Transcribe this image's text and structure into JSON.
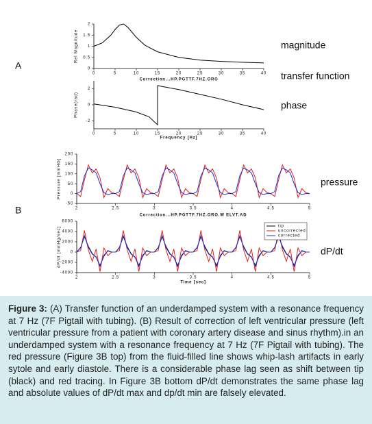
{
  "panels": [
    "A",
    "B"
  ],
  "side_labels": [
    "magnitude",
    "transfer function",
    "phase",
    "pressure",
    "dP/dt"
  ],
  "chart_data": [
    {
      "type": "line",
      "xlabel": "Correction...HP.PGTTF.7HZ.ORO",
      "ylabel": "Rel Magnitude",
      "x": [
        0,
        2,
        4,
        5,
        6,
        7,
        8,
        10,
        12,
        15,
        20,
        25,
        30,
        35,
        40
      ],
      "series": [
        {
          "color": "#000000",
          "values": [
            1,
            1.15,
            1.5,
            1.75,
            1.95,
            2,
            1.85,
            1.4,
            1.05,
            0.75,
            0.5,
            0.38,
            0.32,
            0.28,
            0.25
          ]
        }
      ],
      "xlim": [
        0,
        40
      ],
      "ylim": [
        0,
        2
      ],
      "xticks": [
        0,
        5,
        10,
        15,
        20,
        25,
        30,
        35,
        40
      ],
      "yticks": [
        0,
        0.5,
        1,
        1.5,
        2
      ]
    },
    {
      "type": "line",
      "xlabel": "Frequency [Hz]",
      "ylabel": "Phase(rad)",
      "x": [
        0,
        5,
        10,
        13,
        15,
        15,
        20,
        25,
        30,
        35,
        40
      ],
      "series": [
        {
          "color": "#000000",
          "values": [
            0.1,
            -0.3,
            -0.9,
            -1.5,
            -2.5,
            2.4,
            1.9,
            1.3,
            0.7,
            0,
            -0.6
          ]
        }
      ],
      "xlim": [
        0,
        40
      ],
      "ylim": [
        -3,
        3
      ],
      "xticks": [
        0,
        5,
        10,
        15,
        20,
        25,
        30,
        35,
        40
      ],
      "yticks": [
        -2,
        0,
        2
      ]
    },
    {
      "type": "line",
      "xlabel": "Correction...HP.PGTTF.7HZ.ORO.W ELVT.AD",
      "ylabel": "Pressure [mmHG]",
      "x": [
        2,
        2.05,
        2.1,
        2.15,
        2.2,
        2.25,
        2.3,
        2.35,
        2.4,
        2.45,
        2.5,
        2.55,
        2.6,
        2.65,
        2.7,
        2.75,
        2.8,
        2.85,
        2.9,
        2.95,
        3,
        3.05,
        3.1,
        3.15,
        3.2,
        3.25,
        3.3,
        3.35,
        3.4,
        3.45,
        3.5,
        3.55,
        3.6,
        3.65,
        3.7,
        3.75,
        3.8,
        3.85,
        3.9,
        3.95,
        4,
        4.05,
        4.1,
        4.15,
        4.2,
        4.25,
        4.3,
        4.35,
        4.4,
        4.45,
        4.5,
        4.55,
        4.6,
        4.65,
        4.7,
        4.75,
        4.8,
        4.85,
        4.9,
        4.95,
        5
      ],
      "series": [
        {
          "color": "#e02020",
          "values": [
            0,
            -15,
            70,
            145,
            105,
            125,
            80,
            -20,
            25,
            5,
            0,
            -15,
            70,
            145,
            105,
            125,
            80,
            -20,
            25,
            5,
            0,
            -15,
            70,
            145,
            105,
            125,
            80,
            -20,
            25,
            5,
            0,
            -15,
            70,
            145,
            105,
            125,
            80,
            -20,
            25,
            5,
            0,
            -15,
            70,
            145,
            105,
            125,
            80,
            -20,
            25,
            5,
            0,
            -15,
            70,
            145,
            105,
            125,
            80,
            -20,
            25,
            5,
            0
          ]
        },
        {
          "color": "#1f2fd0",
          "values": [
            0,
            10,
            90,
            130,
            120,
            105,
            50,
            5,
            -5,
            0,
            0,
            10,
            90,
            130,
            120,
            105,
            50,
            5,
            -5,
            0,
            0,
            10,
            90,
            130,
            120,
            105,
            50,
            5,
            -5,
            0,
            0,
            10,
            90,
            130,
            120,
            105,
            50,
            5,
            -5,
            0,
            0,
            10,
            90,
            130,
            120,
            105,
            50,
            5,
            -5,
            0,
            0,
            10,
            90,
            130,
            120,
            105,
            50,
            5,
            -5,
            0,
            0
          ]
        }
      ],
      "xlim": [
        2,
        5
      ],
      "ylim": [
        -50,
        200
      ],
      "xticks": [
        2,
        2.5,
        3,
        3.5,
        4,
        4.5,
        5
      ],
      "yticks": [
        -50,
        0,
        50,
        100,
        150,
        200
      ]
    },
    {
      "type": "line",
      "xlabel": "Time [sec]",
      "ylabel": "dP/dt [mmHg/sec]",
      "legend": "upper right",
      "x": [
        2,
        2.05,
        2.1,
        2.15,
        2.2,
        2.25,
        2.3,
        2.35,
        2.4,
        2.45,
        2.5,
        2.55,
        2.6,
        2.65,
        2.7,
        2.75,
        2.8,
        2.85,
        2.9,
        2.95,
        3,
        3.05,
        3.1,
        3.15,
        3.2,
        3.25,
        3.3,
        3.35,
        3.4,
        3.45,
        3.5,
        3.55,
        3.6,
        3.65,
        3.7,
        3.75,
        3.8,
        3.85,
        3.9,
        3.95,
        4,
        4.05,
        4.1,
        4.15,
        4.2,
        4.25,
        4.3,
        4.35,
        4.4,
        4.45,
        4.5,
        4.55,
        4.6,
        4.65,
        4.7,
        4.75,
        4.8,
        4.85,
        4.9,
        4.95,
        5
      ],
      "series": [
        {
          "name": "tip",
          "color": "#000000",
          "values": [
            0,
            900,
            3000,
            1100,
            -300,
            -1000,
            -2600,
            -800,
            300,
            0,
            0,
            900,
            3000,
            1100,
            -300,
            -1000,
            -2600,
            -800,
            300,
            0,
            0,
            900,
            3000,
            1100,
            -300,
            -1000,
            -2600,
            -800,
            300,
            0,
            0,
            900,
            3000,
            1100,
            -300,
            -1000,
            -2600,
            -800,
            300,
            0,
            0,
            900,
            3000,
            1100,
            -300,
            -1000,
            -2600,
            -800,
            300,
            0,
            0,
            900,
            3000,
            1100,
            -300,
            -1000,
            -2600,
            -800,
            300,
            0,
            0
          ]
        },
        {
          "name": "uncorrected",
          "color": "#e02020",
          "values": [
            0,
            300,
            4200,
            400,
            -1800,
            600,
            -3800,
            800,
            -700,
            0,
            0,
            300,
            4200,
            400,
            -1800,
            600,
            -3800,
            800,
            -700,
            0,
            0,
            300,
            4200,
            400,
            -1800,
            600,
            -3800,
            800,
            -700,
            0,
            0,
            300,
            4200,
            400,
            -1800,
            600,
            -3800,
            800,
            -700,
            0,
            0,
            300,
            4200,
            400,
            -1800,
            600,
            -3800,
            800,
            -700,
            0,
            0,
            300,
            4200,
            400,
            -1800,
            600,
            -3800,
            800,
            -700,
            0,
            0
          ]
        },
        {
          "name": "corrected",
          "color": "#1f2fd0",
          "values": [
            0,
            800,
            3200,
            900,
            -400,
            -900,
            -2800,
            -600,
            200,
            0,
            0,
            800,
            3200,
            900,
            -400,
            -900,
            -2800,
            -600,
            200,
            0,
            0,
            800,
            3200,
            900,
            -400,
            -900,
            -2800,
            -600,
            200,
            0,
            0,
            800,
            3200,
            900,
            -400,
            -900,
            -2800,
            -600,
            200,
            0,
            0,
            800,
            3200,
            900,
            -400,
            -900,
            -2800,
            -600,
            200,
            0,
            0,
            800,
            3200,
            900,
            -400,
            -900,
            -2800,
            -600,
            200,
            0,
            0
          ]
        }
      ],
      "xlim": [
        2,
        5
      ],
      "ylim": [
        -4000,
        6000
      ],
      "xticks": [
        2,
        2.5,
        3,
        3.5,
        4,
        4.5,
        5
      ],
      "yticks": [
        -4000,
        -2000,
        0,
        2000,
        4000,
        6000
      ]
    }
  ],
  "caption": {
    "label": "Figure 3:",
    "text": "(A) Transfer function of an underdamped system with a resonance frequency at 7 Hz (7F Pigtail with tubing). (B) Result of correction of left ventricular pressure (left ventricular pressure from a patient with coronary artery disease and sinus rhythm).in an underdamped system with a resonance frequency at 7 Hz (7F Pigtail with tubing). The red pressure (Figure 3B top) from the fluid-filled line shows whip-lash artifacts in early sytole and early diastole. There is a considerable phase lag seen as shift between tip (black) and red tracing. In Figure 3B bottom dP/dt demonstrates the same phase lag and absolute values of dP/dt max and dp/dt min are falsely elevated."
  }
}
